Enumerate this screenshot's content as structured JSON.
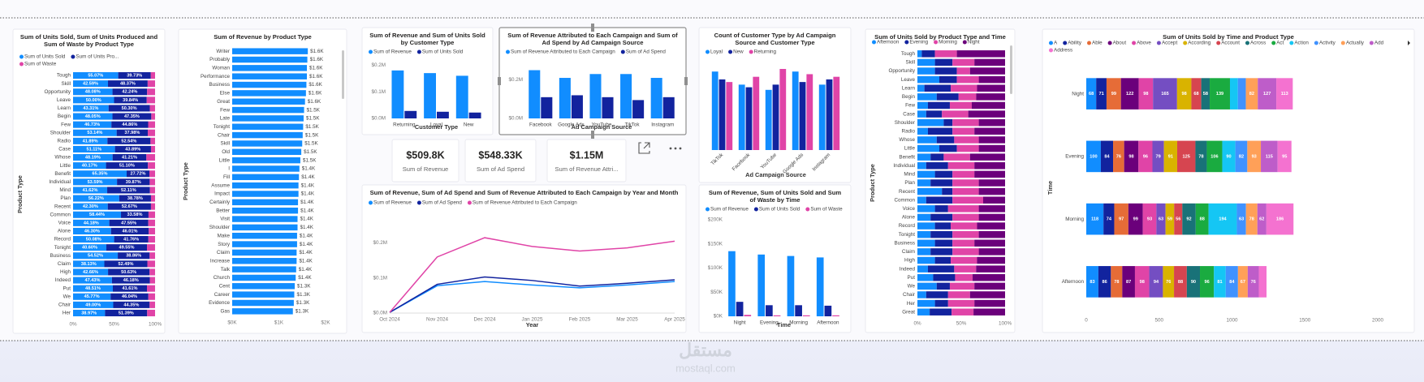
{
  "watermark": {
    "logo": "مستقل",
    "site": "mostaql.com"
  },
  "chart_data": [
    {
      "type": "stacked_bar_100_h",
      "title": "Sum of Units Sold, Sum of Units Produced and Sum of Waste by Product Type",
      "ylabel": "Product Type",
      "categories": [
        "Tough",
        "Skill",
        "Opportunity",
        "Leave",
        "Learn",
        "Begin",
        "Few",
        "Shoulder",
        "Radio",
        "Case",
        "Whose",
        "Little",
        "Benefit",
        "Individual",
        "Mind",
        "Plan",
        "Recent",
        "Common",
        "Voice",
        "Alone",
        "Record",
        "Tonight",
        "Business",
        "Claim",
        "High",
        "Indeed",
        "Put",
        "We",
        "Chair",
        "Her"
      ],
      "series": [
        {
          "name": "Sum of Units Sold",
          "color": "#118DFF",
          "values": [
            55.07,
            42.59,
            48.08,
            50.0,
            43.31,
            48.05,
            46.73,
            53.14,
            41.89,
            51.11,
            48.19,
            40.17,
            65.35,
            53.59,
            41.62,
            56.22,
            42.3,
            58.44,
            44.18,
            46.3,
            50.08,
            40.6,
            54.52,
            38.13,
            42.66,
            47.43,
            48.51,
            45.77,
            49.0,
            38.97
          ],
          "value_labels": [
            "55.07%",
            "42.59%",
            "48.08%",
            "50.00%",
            "43.31%",
            "48.05%",
            "46.73%",
            "53.14%",
            "41.89%",
            "51.11%",
            "48.19%",
            "40.17%",
            "65.35%",
            "53.59%",
            "41.62%",
            "56.22%",
            "42.30%",
            "58.44%",
            "44.18%",
            "46.30%",
            "50.08%",
            "40.60%",
            "54.52%",
            "38.13%",
            "42.66%",
            "47.43%",
            "48.51%",
            "45.77%",
            "49.00%",
            "38.97%"
          ]
        },
        {
          "name": "Sum of Units Pro...",
          "color": "#12239E",
          "values": [
            39.73,
            48.37,
            42.24,
            39.84,
            50.3,
            47.35,
            44.86,
            37.98,
            52.54,
            43.89,
            41.21,
            51.1,
            27.72,
            39.87,
            52.11,
            38.78,
            52.67,
            33.58,
            47.55,
            46.01,
            41.76,
            49.55,
            38.86,
            52.49,
            50.63,
            46.18,
            41.61,
            46.04,
            44.35,
            51.39
          ],
          "value_labels": [
            "39.73%",
            "48.37%",
            "42.24%",
            "39.84%",
            "50.30%",
            "47.35%",
            "44.86%",
            "37.98%",
            "52.54%",
            "43.89%",
            "41.21%",
            "51.10%",
            "27.72%",
            "39.87%",
            "52.11%",
            "38.78%",
            "52.67%",
            "33.58%",
            "47.55%",
            "46.01%",
            "41.76%",
            "49.55%",
            "38.86%",
            "52.49%",
            "50.63%",
            "46.18%",
            "41.61%",
            "46.04%",
            "44.35%",
            "51.39%"
          ]
        },
        {
          "name": "Sum of Waste",
          "color": "#E044A7",
          "values": [
            5.2,
            9.04,
            9.68,
            10.16,
            6.39,
            4.6,
            8.41,
            8.88,
            5.57,
            5.0,
            10.6,
            8.73,
            6.93,
            6.54,
            6.27,
            5.0,
            5.03,
            7.98,
            8.27,
            7.69,
            8.16,
            9.85,
            6.62,
            9.38,
            6.71,
            6.39,
            9.88,
            8.19,
            6.65,
            9.64
          ]
        }
      ],
      "xlim": [
        0,
        100
      ],
      "xticks": [
        {
          "value": 0,
          "label": "0%"
        },
        {
          "value": 50,
          "label": "50%"
        },
        {
          "value": 100,
          "label": "100%"
        }
      ]
    },
    {
      "type": "bar_h",
      "title": "Sum of Revenue by Product Type",
      "ylabel": "Product Type",
      "color": "#118DFF",
      "categories": [
        "Writer",
        "Probably",
        "Woman",
        "Performance",
        "Business",
        "Else",
        "Great",
        "Few",
        "Late",
        "Tonight",
        "Chair",
        "Skill",
        "Old",
        "Little",
        "I",
        "Fill",
        "Assume",
        "Impact",
        "Certainly",
        "Better",
        "Visit",
        "Shoulder",
        "Make",
        "Story",
        "Claim",
        "Increase",
        "Talk",
        "Church",
        "Cent",
        "Career",
        "Evidence",
        "Gas"
      ],
      "values": [
        1620,
        1610,
        1600,
        1600,
        1590,
        1580,
        1560,
        1540,
        1530,
        1520,
        1510,
        1500,
        1480,
        1460,
        1440,
        1430,
        1420,
        1420,
        1410,
        1410,
        1400,
        1400,
        1390,
        1390,
        1380,
        1380,
        1370,
        1360,
        1340,
        1330,
        1320,
        1300
      ],
      "value_labels": [
        "$1.6K",
        "$1.6K",
        "$1.6K",
        "$1.6K",
        "$1.6K",
        "$1.6K",
        "$1.6K",
        "$1.5K",
        "$1.5K",
        "$1.5K",
        "$1.5K",
        "$1.5K",
        "$1.5K",
        "$1.5K",
        "$1.4K",
        "$1.4K",
        "$1.4K",
        "$1.4K",
        "$1.4K",
        "$1.4K",
        "$1.4K",
        "$1.4K",
        "$1.4K",
        "$1.4K",
        "$1.4K",
        "$1.4K",
        "$1.4K",
        "$1.4K",
        "$1.3K",
        "$1.3K",
        "$1.3K",
        "$1.3K"
      ],
      "xlim": [
        0,
        2000
      ],
      "xticks": [
        {
          "value": 0,
          "label": "$0K"
        },
        {
          "value": 1000,
          "label": "$1K"
        },
        {
          "value": 2000,
          "label": "$2K"
        }
      ]
    },
    {
      "type": "bar",
      "title": "Sum of Revenue and Sum of Units Sold by Customer Type",
      "xlabel": "Customer Type",
      "categories": [
        "Returning",
        "Loyal",
        "New"
      ],
      "series": [
        {
          "name": "Sum of Revenue",
          "color": "#118DFF",
          "values": [
            180000,
            170000,
            160000
          ]
        },
        {
          "name": "Sum of Units Sold",
          "color": "#12239E",
          "values": [
            28000,
            25000,
            22000
          ]
        }
      ],
      "ylim": [
        0,
        210000
      ],
      "yticks": [
        {
          "value": 0,
          "label": "$0.0M"
        },
        {
          "value": 100000,
          "label": "$0.1M"
        },
        {
          "value": 200000,
          "label": "$0.2M"
        }
      ]
    },
    {
      "type": "bar",
      "title": "Sum of Revenue Attributed to Each Campaign and Sum of Ad Spend by Ad Campaign Source",
      "xlabel": "Ad Campaign Source",
      "categories": [
        "Facebook",
        "Google Ads",
        "YouTube",
        "TikTok",
        "Instagram"
      ],
      "series": [
        {
          "name": "Sum of Revenue Attributed to Each Campaign",
          "color": "#118DFF",
          "values": [
            250000,
            210000,
            230000,
            230000,
            210000
          ]
        },
        {
          "name": "Sum of Ad Spend",
          "color": "#12239E",
          "values": [
            110000,
            120000,
            110000,
            95000,
            110000
          ]
        }
      ],
      "ylim": [
        0,
        290000
      ],
      "yticks": [
        {
          "value": 0,
          "label": "$0.0M"
        },
        {
          "value": 200000,
          "label": "$0.2M"
        }
      ]
    },
    {
      "type": "card",
      "value": "$509.8K",
      "label": "Sum of Revenue"
    },
    {
      "type": "card",
      "value": "$548.33K",
      "label": "Sum of Ad Spend"
    },
    {
      "type": "card",
      "value": "$1.15M",
      "label": "Sum of Revenue Attri..."
    },
    {
      "type": "bar",
      "title": "Count of Customer Type by Ad Campaign Source and Customer Type",
      "xlabel": "Ad Campaign Source",
      "categories": [
        "TikTok",
        "Facebook",
        "YouTube",
        "Google Ads",
        "Instagram"
      ],
      "series": [
        {
          "name": "Loyal",
          "color": "#118DFF",
          "values": [
            150,
            125,
            115,
            150,
            125
          ]
        },
        {
          "name": "New",
          "color": "#12239E",
          "values": [
            135,
            120,
            125,
            130,
            135
          ]
        },
        {
          "name": "Returning",
          "color": "#E044A7",
          "values": [
            130,
            140,
            155,
            145,
            140
          ]
        }
      ]
    },
    {
      "type": "line",
      "title": "Sum of Revenue, Sum of Ad Spend and Sum of Revenue Attributed to Each Campaign by Year and Month",
      "xlabel": "Year",
      "categories": [
        "Oct 2024",
        "Nov 2024",
        "Dec 2024",
        "Jan 2025",
        "Feb 2025",
        "Mar 2025",
        "Apr 2025"
      ],
      "series": [
        {
          "name": "Sum of Revenue",
          "color": "#118DFF",
          "values": [
            2000,
            78000,
            90000,
            80000,
            72000,
            80000,
            90000
          ]
        },
        {
          "name": "Sum of Ad Spend",
          "color": "#12239E",
          "values": [
            2000,
            82000,
            103000,
            93000,
            77000,
            85000,
            95000
          ]
        },
        {
          "name": "Sum of Revenue Attributed to Each Campaign",
          "color": "#E044A7",
          "values": [
            2000,
            160000,
            215000,
            190000,
            177000,
            186000,
            205000
          ]
        }
      ],
      "ylim": [
        0,
        280000
      ],
      "yticks": [
        {
          "value": 0,
          "label": "$0.0M"
        },
        {
          "value": 100000,
          "label": "$0.1M"
        },
        {
          "value": 200000,
          "label": "$0.2M"
        }
      ]
    },
    {
      "type": "bar",
      "title": "Sum of Revenue, Sum of Units Sold and Sum of Waste by Time",
      "xlabel": "Time",
      "categories": [
        "Night",
        "Evening",
        "Morning",
        "Afternoon"
      ],
      "series": [
        {
          "name": "Sum of Revenue",
          "color": "#118DFF",
          "values": [
            135000,
            128000,
            125000,
            122000
          ]
        },
        {
          "name": "Sum of Units Sold",
          "color": "#12239E",
          "values": [
            30000,
            23000,
            23000,
            22000
          ]
        },
        {
          "name": "Sum of Waste",
          "color": "#E044A7",
          "values": [
            3000,
            2000,
            2000,
            2000
          ]
        }
      ],
      "ylim": [
        0,
        200000
      ],
      "yticks": [
        {
          "value": 0,
          "label": "$0K"
        },
        {
          "value": 50000,
          "label": "$50K"
        },
        {
          "value": 100000,
          "label": "$100K"
        },
        {
          "value": 150000,
          "label": "$150K"
        },
        {
          "value": 200000,
          "label": "$200K"
        }
      ]
    },
    {
      "type": "stacked_bar_100_h",
      "title": "Sum of Units Sold by Product Type and Time",
      "ylabel": "Product Type",
      "categories": [
        "Tough",
        "Skill",
        "Opportunity",
        "Leave",
        "Learn",
        "Begin",
        "Few",
        "Case",
        "Shoulder",
        "Radio",
        "Whose",
        "Little",
        "Benefit",
        "Individual",
        "Mind",
        "Plan",
        "Recent",
        "Common",
        "Voice",
        "Alone",
        "Record",
        "Tonight",
        "Business",
        "Claim",
        "High",
        "Indeed",
        "Put",
        "We",
        "Chair",
        "Her",
        "Great"
      ],
      "series": [
        {
          "name": "Afternoon",
          "color": "#118DFF",
          "values": [
            5,
            20,
            20,
            25,
            8,
            22,
            12,
            10,
            30,
            12,
            22,
            25,
            15,
            10,
            20,
            15,
            28,
            10,
            20,
            15,
            20,
            15,
            20,
            15,
            20,
            12,
            18,
            22,
            10,
            20,
            14
          ]
        },
        {
          "name": "Evening",
          "color": "#12239E",
          "values": [
            15,
            20,
            25,
            20,
            30,
            25,
            25,
            18,
            10,
            28,
            20,
            20,
            15,
            25,
            20,
            25,
            12,
            30,
            15,
            25,
            18,
            25,
            20,
            25,
            18,
            30,
            25,
            15,
            25,
            15,
            25
          ]
        },
        {
          "name": "Morning",
          "color": "#E044A7",
          "values": [
            25,
            25,
            15,
            25,
            30,
            20,
            25,
            30,
            30,
            25,
            28,
            25,
            30,
            30,
            25,
            30,
            30,
            35,
            35,
            30,
            30,
            30,
            25,
            30,
            30,
            25,
            20,
            28,
            25,
            30,
            25
          ]
        },
        {
          "name": "Night",
          "color": "#6B007B",
          "values": [
            55,
            35,
            40,
            30,
            32,
            33,
            38,
            42,
            30,
            35,
            30,
            30,
            40,
            35,
            35,
            30,
            30,
            25,
            30,
            30,
            32,
            30,
            35,
            30,
            32,
            33,
            37,
            35,
            40,
            35,
            36
          ]
        }
      ],
      "xlim": [
        0,
        100
      ],
      "xticks": [
        {
          "value": 0,
          "label": "0%"
        },
        {
          "value": 50,
          "label": "50%"
        },
        {
          "value": 100,
          "label": "100%"
        }
      ]
    },
    {
      "type": "stacked_bar_h",
      "title": "Sum of Units Sold by Time and Product Type",
      "ylabel": "Time",
      "show_values": true,
      "categories": [
        "Night",
        "Evening",
        "Morning",
        "Afternoon"
      ],
      "series": [
        {
          "name": "A",
          "color": "#118DFF",
          "values": [
            68,
            100,
            118,
            83
          ]
        },
        {
          "name": "Ability",
          "color": "#12239E",
          "values": [
            71,
            84,
            74,
            86
          ]
        },
        {
          "name": "Able",
          "color": "#E66C37",
          "values": [
            99,
            76,
            97,
            78
          ]
        },
        {
          "name": "About",
          "color": "#6B007B",
          "values": [
            122,
            98,
            99,
            87
          ]
        },
        {
          "name": "Above",
          "color": "#E044A7",
          "values": [
            98,
            96,
            93,
            98
          ]
        },
        {
          "name": "Accept",
          "color": "#744EC2",
          "values": [
            165,
            79,
            63,
            94
          ]
        },
        {
          "name": "According",
          "color": "#D9B300",
          "values": [
            98,
            91,
            59,
            76
          ]
        },
        {
          "name": "Account",
          "color": "#D64550",
          "values": [
            68,
            125,
            56,
            88
          ]
        },
        {
          "name": "Across",
          "color": "#197278",
          "values": [
            58,
            78,
            92,
            90
          ]
        },
        {
          "name": "Act",
          "color": "#1AAB40",
          "values": [
            139,
            106,
            88,
            96
          ]
        },
        {
          "name": "Action",
          "color": "#15C6F4",
          "values": [
            54,
            90,
            194,
            81
          ]
        },
        {
          "name": "Activity",
          "color": "#4092FF",
          "values": [
            55,
            82,
            63,
            84
          ]
        },
        {
          "name": "Actually",
          "color": "#FFA058",
          "values": [
            82,
            93,
            78,
            67
          ]
        },
        {
          "name": "Add",
          "color": "#BE5DC9",
          "values": [
            127,
            115,
            62,
            76
          ]
        },
        {
          "name": "Address",
          "color": "#F472D0",
          "values": [
            113,
            95,
            186,
            53
          ]
        }
      ],
      "xlim": [
        0,
        2000
      ],
      "xticks": [
        0,
        500,
        1000,
        1500,
        2000
      ]
    }
  ]
}
